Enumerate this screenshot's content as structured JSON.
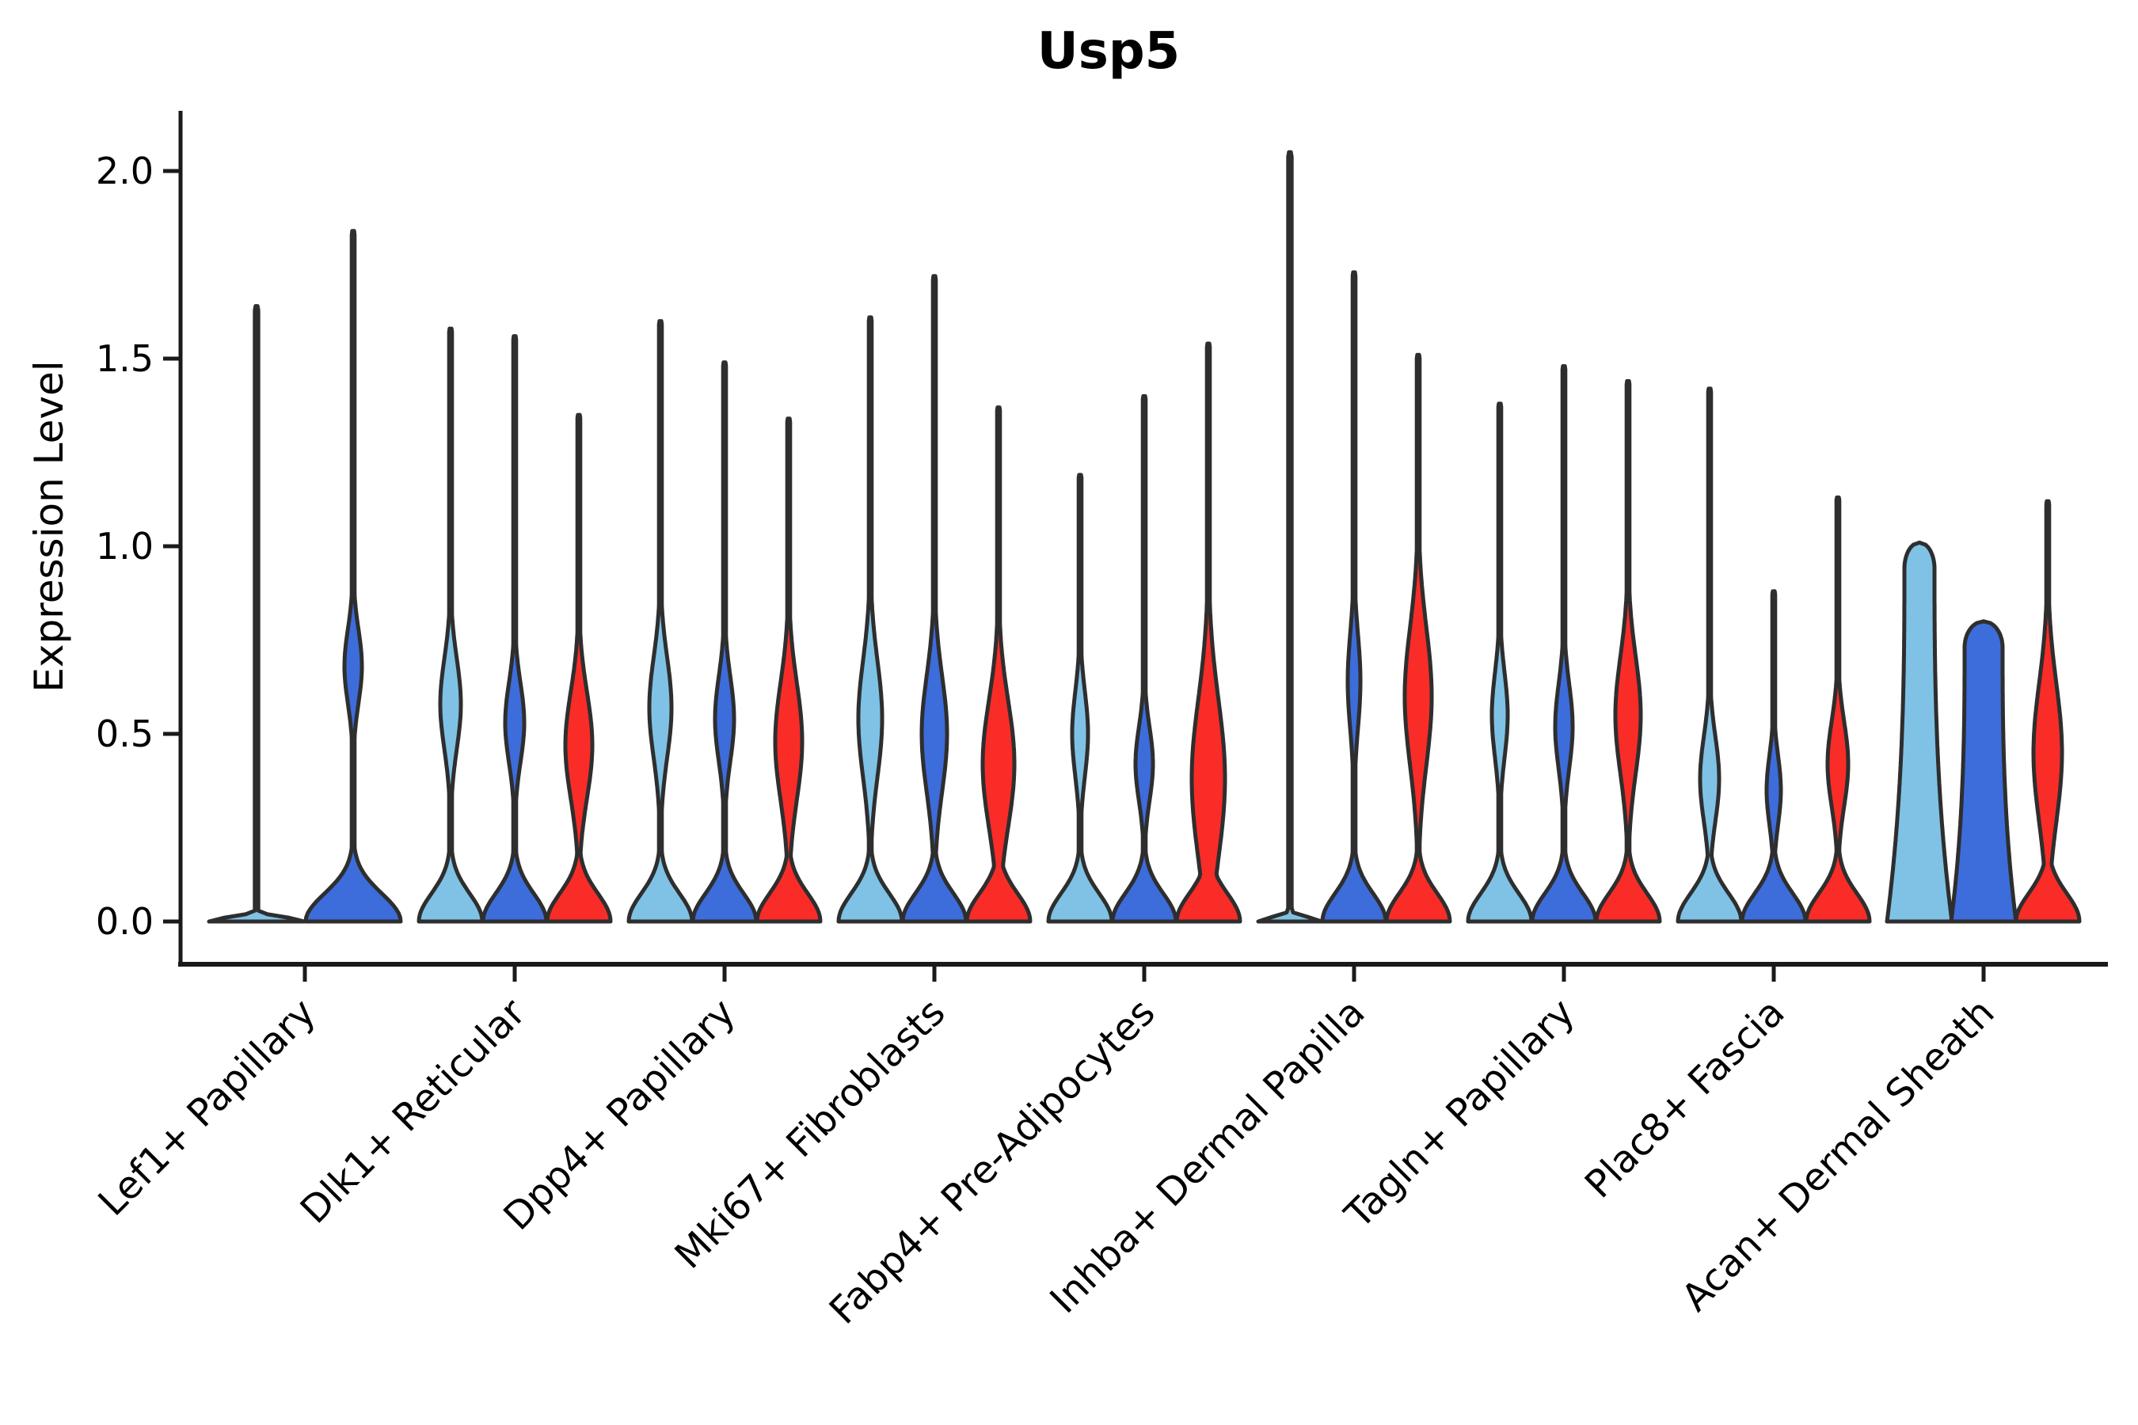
{
  "chart_data": {
    "type": "violin",
    "title": "Usp5",
    "ylabel": "Expression Level",
    "xlabel": "",
    "ylim": [
      0,
      2.15
    ],
    "grid": false,
    "legend": "none",
    "yticks": [
      {
        "label": "0.0",
        "value": 0.0
      },
      {
        "label": "0.5",
        "value": 0.5
      },
      {
        "label": "1.0",
        "value": 1.0
      },
      {
        "label": "1.5",
        "value": 1.5
      },
      {
        "label": "2.0",
        "value": 2.0
      }
    ],
    "categories": [
      "Lef1+ Papillary",
      "Dlk1+ Reticular",
      "Dpp4+ Papillary",
      "Mki67+ Fibroblasts",
      "Fabp4+ Pre-Adipocytes",
      "Inhba+ Dermal Papilla",
      "Tagln+ Papillary",
      "Plac8+ Fascia",
      "Acan+ Dermal Sheath"
    ],
    "colors": {
      "light": "#7FC2E6",
      "dark": "#3D6CDB",
      "red": "#F92C28",
      "stroke": "#2E2E2E",
      "axis": "#1a1a1a",
      "text": "#000000"
    },
    "groups": [
      {
        "category": "Lef1+ Papillary",
        "violins": [
          {
            "color": "light",
            "shape": "flat",
            "max": 1.64,
            "base_hw": 60
          },
          {
            "color": "dark",
            "shape": "normal",
            "max": 1.84,
            "bulge": {
              "v": 0.68,
              "hw": 11,
              "sig": 0.14
            },
            "base_hw": 60
          }
        ]
      },
      {
        "category": "Dlk1+ Reticular",
        "violins": [
          {
            "color": "light",
            "shape": "normal",
            "max": 1.58,
            "bulge": {
              "v": 0.58,
              "hw": 13,
              "sig": 0.17
            },
            "base_hw": 40
          },
          {
            "color": "dark",
            "shape": "normal",
            "max": 1.56,
            "bulge": {
              "v": 0.53,
              "hw": 12,
              "sig": 0.15
            },
            "base_hw": 40
          },
          {
            "color": "red",
            "shape": "normal",
            "max": 1.35,
            "bulge": {
              "v": 0.47,
              "hw": 17,
              "sig": 0.2
            },
            "base_hw": 40
          }
        ]
      },
      {
        "category": "Dpp4+ Papillary",
        "violins": [
          {
            "color": "light",
            "shape": "normal",
            "max": 1.6,
            "bulge": {
              "v": 0.57,
              "hw": 14,
              "sig": 0.19
            },
            "base_hw": 40
          },
          {
            "color": "dark",
            "shape": "normal",
            "max": 1.49,
            "bulge": {
              "v": 0.54,
              "hw": 12,
              "sig": 0.16
            },
            "base_hw": 40
          },
          {
            "color": "red",
            "shape": "normal",
            "max": 1.34,
            "bulge": {
              "v": 0.48,
              "hw": 17,
              "sig": 0.22
            },
            "base_hw": 40
          }
        ]
      },
      {
        "category": "Mki67+ Fibroblasts",
        "violins": [
          {
            "color": "light",
            "shape": "normal",
            "max": 1.61,
            "bulge": {
              "v": 0.54,
              "hw": 15,
              "sig": 0.22
            },
            "base_hw": 40
          },
          {
            "color": "dark",
            "shape": "normal",
            "max": 1.72,
            "bulge": {
              "v": 0.5,
              "hw": 16,
              "sig": 0.22
            },
            "base_hw": 40
          },
          {
            "color": "red",
            "shape": "normal",
            "max": 1.37,
            "bulge": {
              "v": 0.42,
              "hw": 20,
              "sig": 0.24
            },
            "base_hw": 40
          }
        ]
      },
      {
        "category": "Fabp4+ Pre-Adipocytes",
        "violins": [
          {
            "color": "light",
            "shape": "normal",
            "max": 1.19,
            "bulge": {
              "v": 0.5,
              "hw": 10,
              "sig": 0.16
            },
            "base_hw": 40
          },
          {
            "color": "dark",
            "shape": "normal",
            "max": 1.4,
            "bulge": {
              "v": 0.42,
              "hw": 11,
              "sig": 0.14
            },
            "base_hw": 40
          },
          {
            "color": "red",
            "shape": "normal",
            "max": 1.54,
            "bulge": {
              "v": 0.38,
              "hw": 21,
              "sig": 0.3
            },
            "base_hw": 40
          }
        ]
      },
      {
        "category": "Inhba+ Dermal Papilla",
        "violins": [
          {
            "color": "light",
            "shape": "flat",
            "max": 2.05,
            "base_hw": 40
          },
          {
            "color": "dark",
            "shape": "normal",
            "max": 1.73,
            "bulge": {
              "v": 0.64,
              "hw": 8,
              "sig": 0.18
            },
            "base_hw": 40
          },
          {
            "color": "red",
            "shape": "normal",
            "max": 1.51,
            "bulge": {
              "v": 0.6,
              "hw": 17,
              "sig": 0.26
            },
            "base_hw": 40
          }
        ]
      },
      {
        "category": "Tagln+ Papillary",
        "violins": [
          {
            "color": "light",
            "shape": "normal",
            "max": 1.38,
            "bulge": {
              "v": 0.55,
              "hw": 10,
              "sig": 0.16
            },
            "base_hw": 40
          },
          {
            "color": "dark",
            "shape": "normal",
            "max": 1.48,
            "bulge": {
              "v": 0.52,
              "hw": 11,
              "sig": 0.16
            },
            "base_hw": 40
          },
          {
            "color": "red",
            "shape": "normal",
            "max": 1.44,
            "bulge": {
              "v": 0.55,
              "hw": 16,
              "sig": 0.22
            },
            "base_hw": 40
          }
        ]
      },
      {
        "category": "Plac8+ Fascia",
        "violins": [
          {
            "color": "light",
            "shape": "normal",
            "max": 1.42,
            "bulge": {
              "v": 0.38,
              "hw": 12,
              "sig": 0.16
            },
            "base_hw": 40
          },
          {
            "color": "dark",
            "shape": "normal",
            "max": 0.88,
            "bulge": {
              "v": 0.35,
              "hw": 9,
              "sig": 0.13
            },
            "base_hw": 40
          },
          {
            "color": "red",
            "shape": "normal",
            "max": 1.13,
            "bulge": {
              "v": 0.42,
              "hw": 13,
              "sig": 0.16
            },
            "base_hw": 40
          }
        ]
      },
      {
        "category": "Acan+ Dermal Sheath",
        "violins": [
          {
            "color": "light",
            "shape": "column",
            "max": 1.01,
            "top_hw": 19,
            "base_hw": 41
          },
          {
            "color": "dark",
            "shape": "column",
            "max": 0.8,
            "top_hw": 24,
            "base_hw": 41
          },
          {
            "color": "red",
            "shape": "normal",
            "max": 1.12,
            "bulge": {
              "v": 0.45,
              "hw": 18,
              "sig": 0.26
            },
            "base_hw": 40
          }
        ]
      }
    ]
  }
}
